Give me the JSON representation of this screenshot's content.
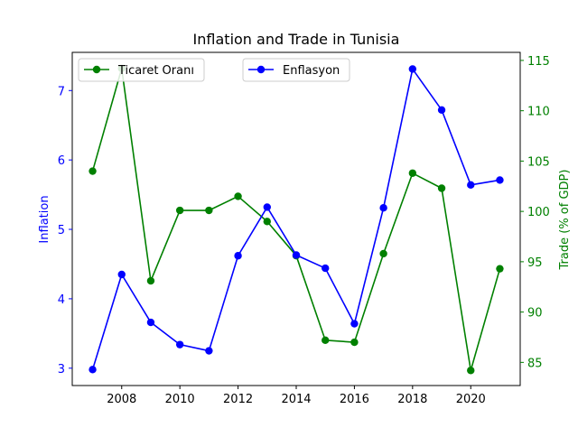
{
  "chart_data": {
    "type": "line",
    "title": "Inflation and Trade in Tunisia",
    "xlabel": "",
    "x": [
      2007,
      2008,
      2009,
      2010,
      2011,
      2012,
      2013,
      2014,
      2015,
      2016,
      2017,
      2018,
      2019,
      2020,
      2021
    ],
    "xlim": [
      2006.3,
      2021.7
    ],
    "xticks": [
      2008,
      2010,
      2012,
      2014,
      2016,
      2018,
      2020
    ],
    "left_axis": {
      "label": "Inflation",
      "color": "#0000ff",
      "ylim": [
        2.75,
        7.55
      ],
      "ticks": [
        3,
        4,
        5,
        6,
        7
      ]
    },
    "right_axis": {
      "label": "Trade (% of GDP)",
      "color": "#008000",
      "ylim": [
        82.7,
        115.8
      ],
      "ticks": [
        85,
        90,
        95,
        100,
        105,
        110,
        115
      ]
    },
    "series": [
      {
        "name": "Enflasyon",
        "axis": "left",
        "color": "#0000ff",
        "marker": "circle",
        "values": [
          2.98,
          4.35,
          3.66,
          3.34,
          3.25,
          4.62,
          5.32,
          4.63,
          4.44,
          3.64,
          5.31,
          7.31,
          6.72,
          5.64,
          5.71
        ]
      },
      {
        "name": "Ticaret Oranı",
        "axis": "right",
        "color": "#008000",
        "marker": "circle",
        "values": [
          104.0,
          114.2,
          93.1,
          100.1,
          100.1,
          101.5,
          99.0,
          95.6,
          87.2,
          87.0,
          95.8,
          103.8,
          102.3,
          84.2,
          94.3
        ]
      }
    ],
    "legends": [
      {
        "series": "Ticaret Oranı",
        "placement": "upper-left"
      },
      {
        "series": "Enflasyon",
        "placement": "upper-center"
      }
    ],
    "grid": false
  }
}
